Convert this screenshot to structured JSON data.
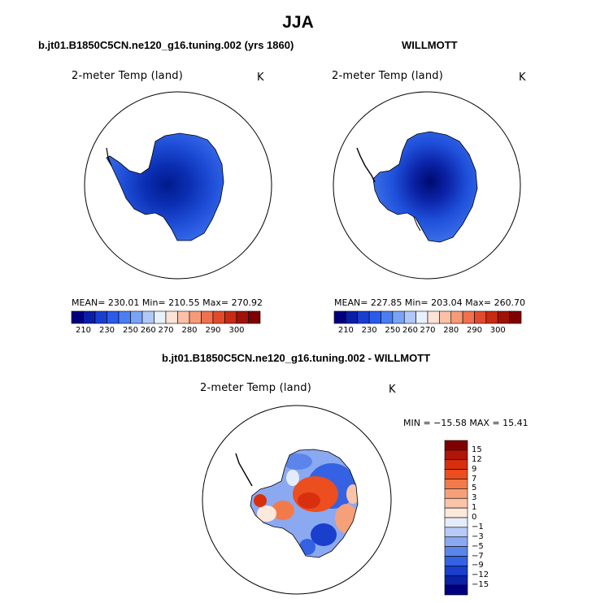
{
  "figure": {
    "title": "JJA"
  },
  "panels": [
    {
      "title": "b.jt01.B1850C5CN.ne120_g16.tuning.002 (yrs 1860)",
      "variable": "2-meter Temp (land)",
      "units": "K",
      "stats": "MEAN= 230.01   Min= 210.55   Max= 270.92",
      "colorbar_ticks": [
        "210",
        "230",
        "250",
        "260",
        "270",
        "280",
        "290",
        "300"
      ]
    },
    {
      "title": "WILLMOTT",
      "variable": "2-meter Temp (land)",
      "units": "K",
      "stats": "MEAN= 227.85   Min= 203.04   Max= 260.70",
      "colorbar_ticks": [
        "210",
        "230",
        "250",
        "260",
        "270",
        "280",
        "290",
        "300"
      ]
    },
    {
      "title": "b.jt01.B1850C5CN.ne120_g16.tuning.002 - WILLMOTT",
      "variable": "2-meter Temp (land)",
      "units": "K",
      "stats": "MIN = −15.58 MAX =  15.41",
      "colorbar_ticks": [
        "15",
        "12",
        "9",
        "7",
        "5",
        "3",
        "1",
        "0",
        "−1",
        "−3",
        "−5",
        "−7",
        "−9",
        "−12",
        "−15"
      ]
    }
  ],
  "colors": {
    "abs_scale": [
      "#00007f",
      "#0a1fa8",
      "#1a3fd0",
      "#2a5bea",
      "#4a7ef2",
      "#7aa2f6",
      "#b0c8f8",
      "#e8f0fc",
      "#fde2d6",
      "#fbc0a6",
      "#f79a78",
      "#f07050",
      "#e24a2e",
      "#c82a14",
      "#a01208",
      "#7f0000"
    ],
    "diff_scale": [
      "#7f0000",
      "#b01508",
      "#d8300f",
      "#ec4e1f",
      "#f27a4a",
      "#f6a07a",
      "#fac4a8",
      "#fde8dc",
      "#e4ecfb",
      "#b8cbf6",
      "#8aa9f1",
      "#5b85ea",
      "#3462e2",
      "#1a3fcc",
      "#0a21a8",
      "#00007f"
    ]
  }
}
